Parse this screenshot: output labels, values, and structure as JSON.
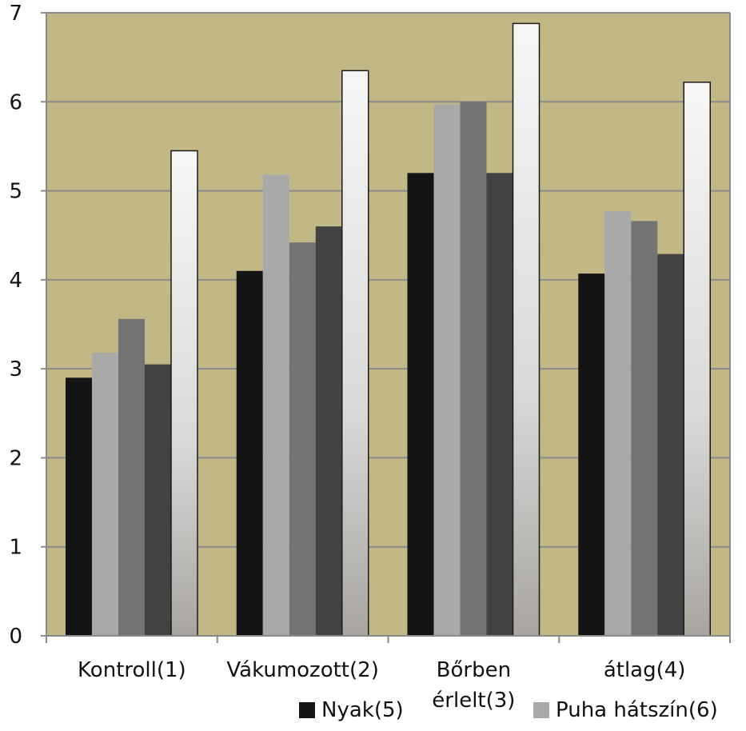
{
  "chart_data": {
    "type": "bar",
    "categories": [
      "Kontroll(1)",
      "Vákumozott(2)",
      "Bőrben érlelt(3)",
      "átlag(4)"
    ],
    "series": [
      {
        "name": "Nyak(5)",
        "values": [
          2.9,
          4.1,
          5.2,
          4.07
        ],
        "color": "#141414"
      },
      {
        "name": "Puha hátszín(6)",
        "values": [
          3.18,
          5.18,
          5.97,
          4.77
        ],
        "color": "#a9a9a9"
      },
      {
        "name": "",
        "values": [
          3.56,
          4.42,
          6.0,
          4.66
        ],
        "color": "#737373"
      },
      {
        "name": "",
        "values": [
          3.05,
          4.6,
          5.2,
          4.29
        ],
        "color": "#424242"
      },
      {
        "name": "",
        "values": [
          5.45,
          6.35,
          6.88,
          6.22
        ],
        "color": "#f2f2f2"
      }
    ],
    "ylim": [
      0,
      7
    ],
    "yticks": [
      "0",
      "1",
      "2",
      "3",
      "4",
      "5",
      "6",
      "7"
    ],
    "grid": true,
    "plot_background": "#c2b886",
    "legend_position": "bottom"
  }
}
